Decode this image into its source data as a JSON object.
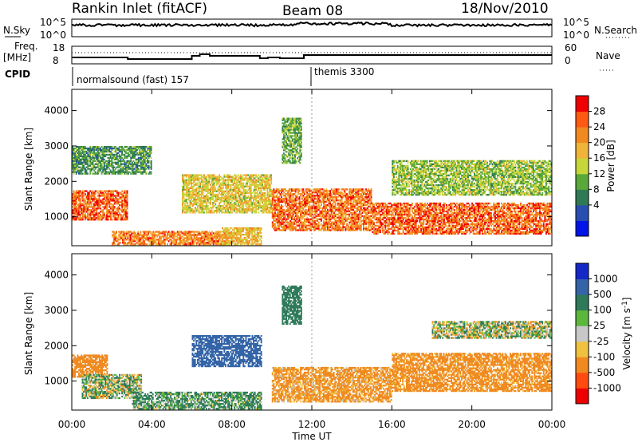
{
  "header": {
    "station": "Rankin Inlet (fitACF)",
    "beam": "Beam 08",
    "date": "18/Nov/2010"
  },
  "top_panels": {
    "nsky_label": "N.Sky",
    "nsky_ticks": [
      "10^5",
      "10^0"
    ],
    "nsearch_label": "N.Search",
    "nsearch_ticks": [
      "10^5",
      "10^0"
    ],
    "freq_label": "Freq.",
    "freq_unit": "[MHz]",
    "freq_ticks": [
      "18",
      "8"
    ],
    "nave_label": "Nave",
    "nave_ticks": [
      "60",
      "0"
    ],
    "cpid_label": "CPID",
    "cpid_modes": [
      {
        "name": "normalsound (fast)",
        "id": "157"
      },
      {
        "name": "themis",
        "id": "3300"
      }
    ]
  },
  "axes": {
    "ylabel": "Slant Range [km]",
    "yticks": [
      "4000",
      "3000",
      "2000",
      "1000"
    ],
    "xlabel": "Time UT",
    "xticks": [
      "00:00",
      "04:00",
      "08:00",
      "12:00",
      "16:00",
      "20:00",
      "00:00"
    ]
  },
  "colorbars": {
    "power": {
      "label": "Power [dB]",
      "ticks": [
        "28",
        "24",
        "20",
        "16",
        "12",
        "8",
        "4"
      ],
      "colors": [
        "#0014e8",
        "#284fb0",
        "#2f7a55",
        "#5aa83a",
        "#c7d63a",
        "#f0b43a",
        "#f08a20",
        "#ff5a14",
        "#f00000"
      ]
    },
    "velocity": {
      "label": "Velocity [m s",
      "label_sup": "-1",
      "label_end": "]",
      "ticks": [
        "1000",
        "500",
        "100",
        "25",
        "-25",
        "-100",
        "-500",
        "-1000"
      ],
      "colors": [
        "#1428c8",
        "#3464a8",
        "#2e7a5a",
        "#5cb83c",
        "#c8c8c8",
        "#f0c040",
        "#f08a20",
        "#ff4a10",
        "#ee0000"
      ]
    }
  },
  "chart_data": {
    "type": "heatmap",
    "x_range_hours_ut": [
      0,
      24
    ],
    "y_range_km": [
      180,
      4600
    ],
    "mode_change_time_ut": "12:00",
    "power_regions": [
      {
        "t0": 0.0,
        "t1": 2.8,
        "r0": 900,
        "r1": 1750,
        "value": 28
      },
      {
        "t0": 2.0,
        "t1": 8.0,
        "r0": 200,
        "r1": 600,
        "value": 26
      },
      {
        "t0": 5.5,
        "t1": 10.0,
        "r0": 1100,
        "r1": 2200,
        "value": 20
      },
      {
        "t0": 7.5,
        "t1": 9.5,
        "r0": 200,
        "r1": 700,
        "value": 22
      },
      {
        "t0": 10.5,
        "t1": 11.5,
        "r0": 2500,
        "r1": 3800,
        "value": 14
      },
      {
        "t0": 10.0,
        "t1": 15.0,
        "r0": 600,
        "r1": 1800,
        "value": 27
      },
      {
        "t0": 15.0,
        "t1": 24.0,
        "r0": 500,
        "r1": 1400,
        "value": 28
      },
      {
        "t0": 16.0,
        "t1": 24.0,
        "r0": 1600,
        "r1": 2600,
        "value": 16
      },
      {
        "t0": 0.0,
        "t1": 4.0,
        "r0": 2200,
        "r1": 3000,
        "value": 12
      }
    ],
    "velocity_regions": [
      {
        "t0": 0.0,
        "t1": 1.8,
        "r0": 1100,
        "r1": 1750,
        "value": -300
      },
      {
        "t0": 0.5,
        "t1": 3.5,
        "r0": 500,
        "r1": 1200,
        "value": 50
      },
      {
        "t0": 6.0,
        "t1": 9.5,
        "r0": 1400,
        "r1": 2300,
        "value": 800
      },
      {
        "t0": 3.0,
        "t1": 9.5,
        "r0": 200,
        "r1": 700,
        "value": 150
      },
      {
        "t0": 10.5,
        "t1": 11.5,
        "r0": 2600,
        "r1": 3700,
        "value": 300
      },
      {
        "t0": 10.0,
        "t1": 16.0,
        "r0": 400,
        "r1": 1400,
        "value": -200
      },
      {
        "t0": 16.0,
        "t1": 24.0,
        "r0": 700,
        "r1": 1800,
        "value": -250
      },
      {
        "t0": 18.0,
        "t1": 24.0,
        "r0": 2200,
        "r1": 2700,
        "value": 20
      }
    ]
  }
}
